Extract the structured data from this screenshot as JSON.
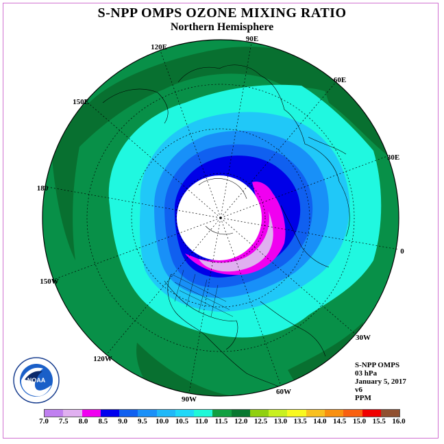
{
  "header": {
    "title": "S-NPP OMPS OZONE MIXING RATIO",
    "subtitle": "Northern Hemisphere"
  },
  "longitude_labels": [
    "90E",
    "60E",
    "30E",
    "0",
    "30W",
    "60W",
    "90W",
    "120W",
    "150W",
    "180",
    "150E",
    "120E"
  ],
  "info": {
    "line1": "S-NPP OMPS",
    "line2": "03 hPa",
    "line3": "January 5, 2017",
    "line4": "v6",
    "line5": "PPM"
  },
  "legend": {
    "ticks": [
      "7.0",
      "7.5",
      "8.0",
      "8.5",
      "9.0",
      "9.5",
      "10.0",
      "10.5",
      "11.0",
      "11.5",
      "12.0",
      "12.5",
      "13.0",
      "13.5",
      "14.0",
      "14.5",
      "15.0",
      "15.5",
      "16.0"
    ],
    "colors": [
      "#c080f0",
      "#e0b0f0",
      "#f000f0",
      "#0000ee",
      "#1060f0",
      "#1a90f8",
      "#20b8f8",
      "#20d8f8",
      "#20f8d8",
      "#10a040",
      "#087830",
      "#90d010",
      "#c8f020",
      "#f8f820",
      "#f8c020",
      "#f89010",
      "#f86010",
      "#f00000",
      "#905030"
    ]
  },
  "logo": {
    "name": "NOAA",
    "ring_text": "NATIONAL OCEANIC AND ATMOSPHERIC ADMINISTRATION · U.S. DEPARTMENT OF COMMERCE"
  },
  "map_colors": {
    "outer_green": "#089048",
    "dark_green": "#087030",
    "aqua": "#20f8e0",
    "light_blue": "#20c8f8",
    "mid_blue": "#1890f8",
    "blue": "#1060f0",
    "deep_blue": "#0000e8",
    "magenta": "#f000f0",
    "lavender": "#e0b0f0",
    "polar_night": "#ffffff"
  }
}
